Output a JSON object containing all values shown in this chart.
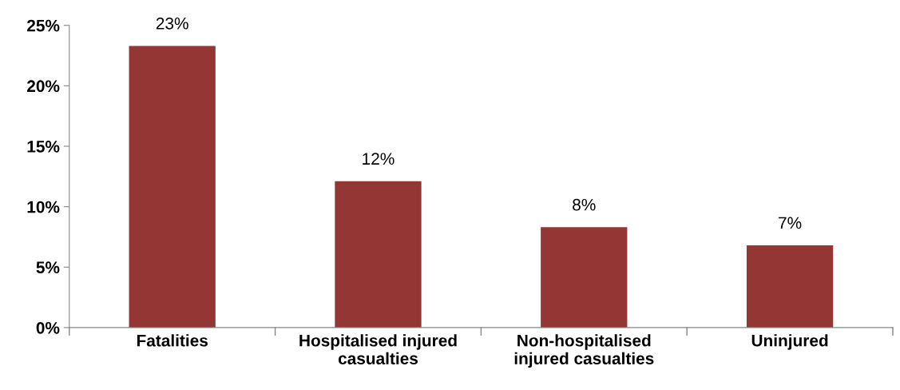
{
  "chart_data": {
    "type": "bar",
    "categories": [
      "Fatalities",
      "Hospitalised injured\ncasualties",
      "Non-hospitalised\ninjured casualties",
      "Uninjured"
    ],
    "values": [
      23.3,
      12.1,
      8.3,
      6.8
    ],
    "value_labels": [
      "23%",
      "12%",
      "8%",
      "7%"
    ],
    "color": "#943634",
    "ylim": [
      0,
      25
    ],
    "yticks": [
      {
        "value": 0,
        "label": "0%"
      },
      {
        "value": 5,
        "label": "5%"
      },
      {
        "value": 10,
        "label": "10%"
      },
      {
        "value": 15,
        "label": "15%"
      },
      {
        "value": 20,
        "label": "20%"
      },
      {
        "value": 25,
        "label": "25%"
      }
    ],
    "grid": false,
    "legend": false
  }
}
